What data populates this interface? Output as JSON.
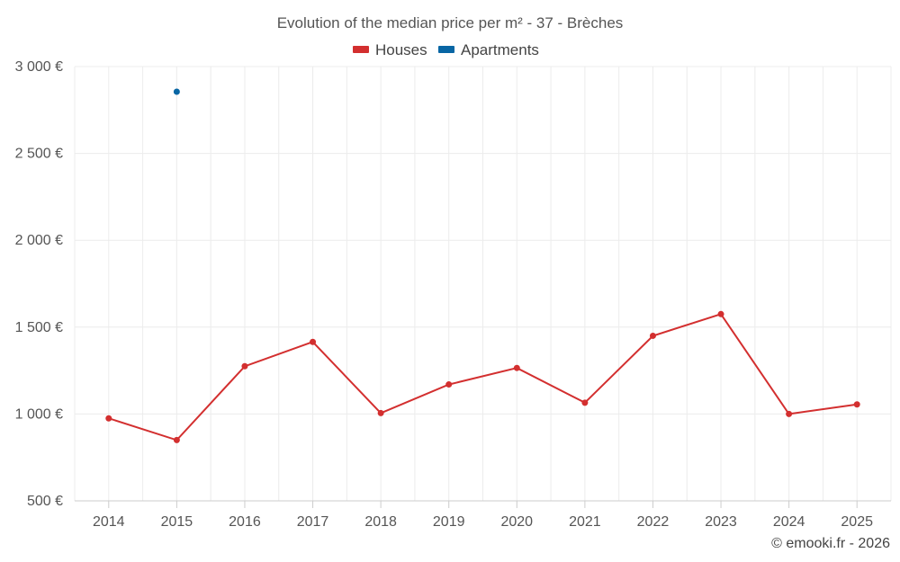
{
  "chart_data": {
    "type": "line",
    "title": "Evolution of the median price per m² - 37 - Brèches",
    "xlabel": "",
    "ylabel": "",
    "categories": [
      "2014",
      "2015",
      "2016",
      "2017",
      "2018",
      "2019",
      "2020",
      "2021",
      "2022",
      "2023",
      "2024",
      "2025"
    ],
    "ylim": [
      500,
      3000
    ],
    "yticks": [
      500,
      1000,
      1500,
      2000,
      2500,
      3000
    ],
    "ytick_labels": [
      "500 €",
      "1 000 €",
      "1 500 €",
      "2 000 €",
      "2 500 €",
      "3 000 €"
    ],
    "grid": true,
    "legend_position": "top-center",
    "series": [
      {
        "name": "Houses",
        "color": "#d32f2f",
        "values": [
          975,
          850,
          1275,
          1415,
          1005,
          1170,
          1265,
          1065,
          1450,
          1575,
          1000,
          1055
        ]
      },
      {
        "name": "Apartments",
        "color": "#0866a4",
        "values": [
          null,
          2855,
          null,
          null,
          null,
          null,
          null,
          null,
          null,
          null,
          null,
          null
        ]
      }
    ]
  },
  "credit": "© emooki.fr - 2026"
}
